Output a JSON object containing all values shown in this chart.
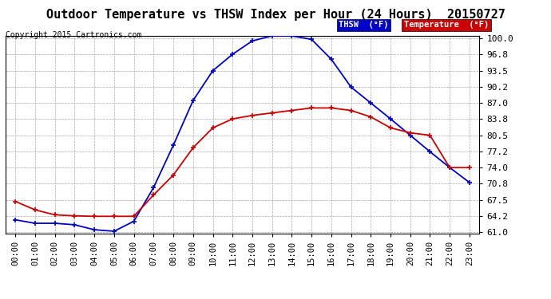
{
  "title": "Outdoor Temperature vs THSW Index per Hour (24 Hours)  20150727",
  "copyright": "Copyright 2015 Cartronics.com",
  "hours": [
    "00:00",
    "01:00",
    "02:00",
    "03:00",
    "04:00",
    "05:00",
    "06:00",
    "07:00",
    "08:00",
    "09:00",
    "10:00",
    "11:00",
    "12:00",
    "13:00",
    "14:00",
    "15:00",
    "16:00",
    "17:00",
    "18:00",
    "19:00",
    "20:00",
    "21:00",
    "22:00",
    "23:00"
  ],
  "thsw": [
    63.5,
    62.8,
    62.8,
    62.5,
    61.5,
    61.2,
    63.2,
    70.0,
    78.5,
    87.5,
    93.5,
    96.8,
    99.5,
    100.5,
    100.5,
    99.8,
    95.8,
    90.2,
    87.0,
    83.8,
    80.5,
    77.2,
    74.0,
    71.0
  ],
  "temp": [
    67.2,
    65.5,
    64.5,
    64.3,
    64.2,
    64.2,
    64.2,
    68.5,
    72.5,
    78.0,
    82.0,
    83.8,
    84.5,
    85.0,
    85.5,
    86.0,
    86.0,
    85.5,
    84.2,
    82.0,
    81.0,
    80.5,
    74.0,
    74.0
  ],
  "thsw_color": "#0000cc",
  "temp_color": "#cc0000",
  "ylim_min": 61.0,
  "ylim_max": 100.0,
  "yticks": [
    61.0,
    64.2,
    67.5,
    70.8,
    74.0,
    77.2,
    80.5,
    83.8,
    87.0,
    90.2,
    93.5,
    96.8,
    100.0
  ],
  "background_color": "#ffffff",
  "plot_bg_color": "#ffffff",
  "grid_color": "#aaaaaa",
  "title_fontsize": 11,
  "copyright_fontsize": 7,
  "tick_fontsize": 8,
  "legend_thsw_label": "THSW  (°F)",
  "legend_temp_label": "Temperature  (°F)",
  "legend_thsw_bg": "#0000cc",
  "legend_temp_bg": "#cc0000",
  "legend_text_color": "#ffffff"
}
